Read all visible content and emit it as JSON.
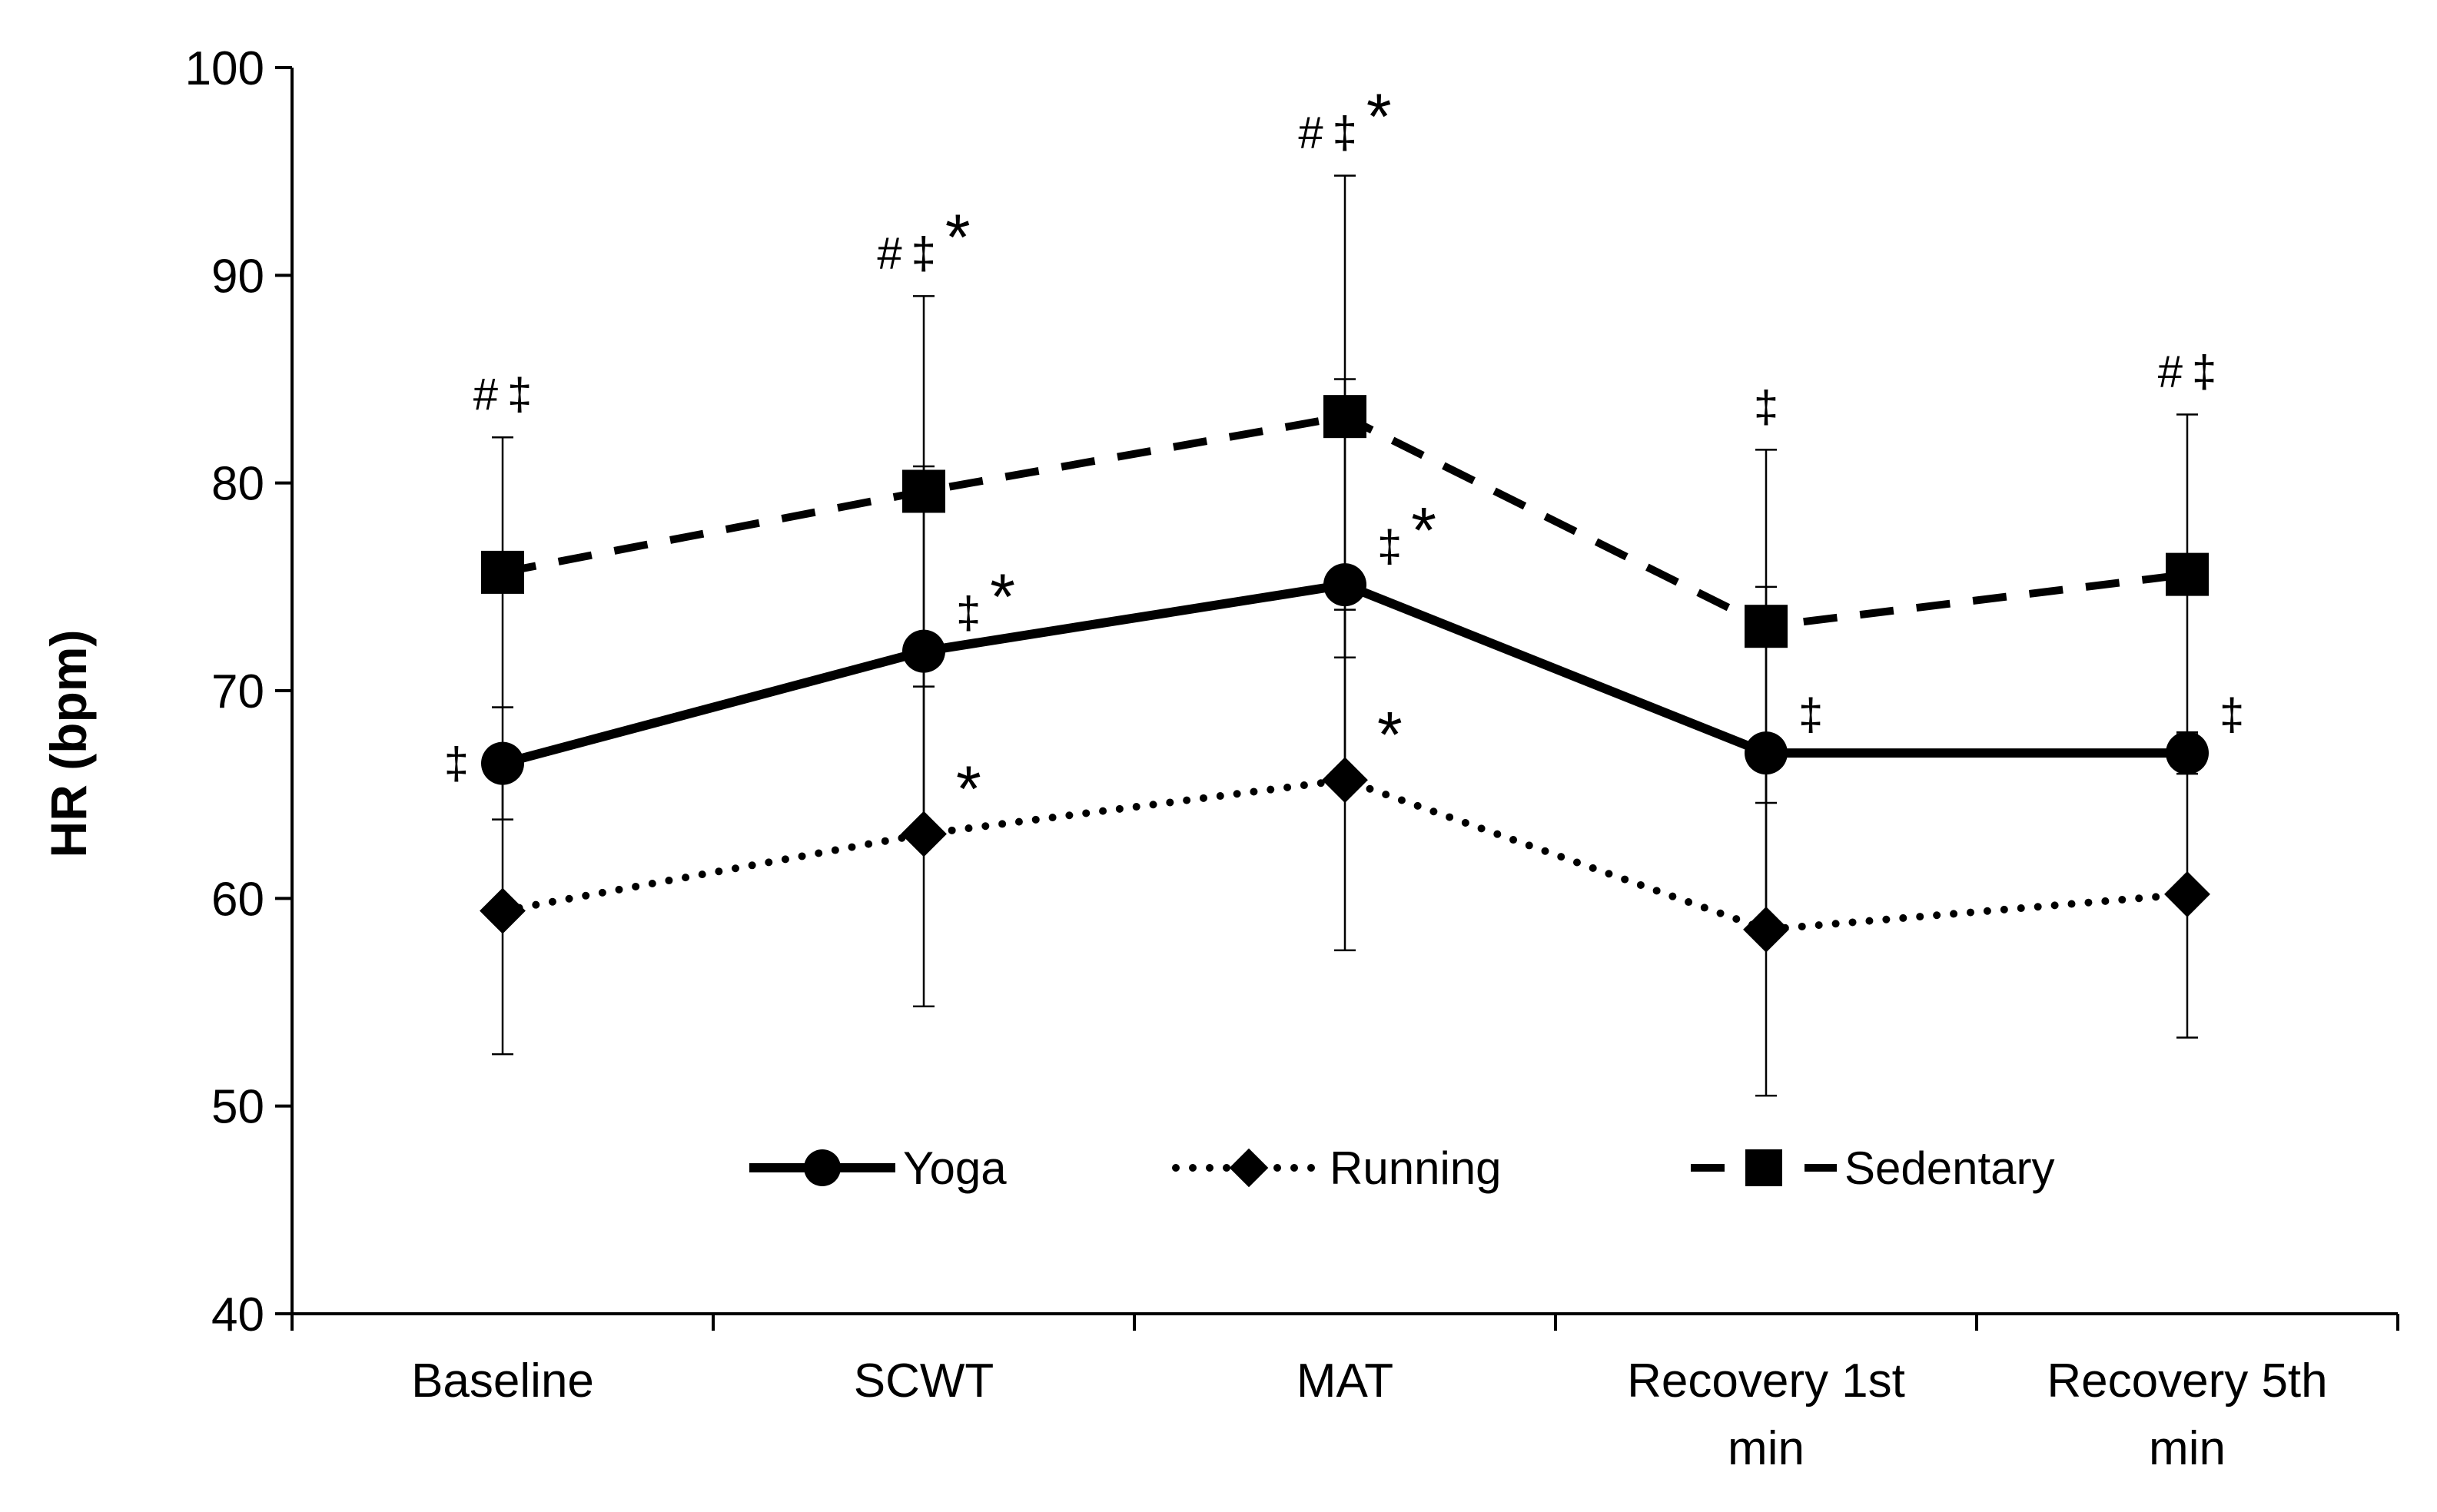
{
  "chart_data": {
    "type": "line",
    "title": "",
    "xlabel": "",
    "ylabel": "HR (bpm)",
    "ylim": [
      40,
      100
    ],
    "yticks": [
      40,
      50,
      60,
      70,
      80,
      90,
      100
    ],
    "grid": false,
    "legend_position": "bottom-center",
    "categories": [
      [
        "Baseline"
      ],
      [
        "SCWT"
      ],
      [
        "MAT"
      ],
      [
        "Recovery 1st",
        "min"
      ],
      [
        "Recovery 5th",
        "min"
      ]
    ],
    "series": [
      {
        "name": "Yoga",
        "line_style": "solid",
        "marker": "circle",
        "values": [
          66.5,
          71.9,
          75.1,
          67.0,
          67.0
        ],
        "error_upper": [
          69.2,
          80.8,
          85.0,
          75.0,
          68.0
        ],
        "error_lower": [
          63.8,
          63.0,
          65.2,
          59.0,
          66.0
        ],
        "annotations": [
          "‡",
          "‡ *",
          "‡ *",
          "‡",
          "‡"
        ]
      },
      {
        "name": "Running",
        "line_style": "dotted",
        "marker": "diamond",
        "values": [
          59.4,
          63.1,
          65.7,
          58.5,
          60.2
        ],
        "error_upper": [
          66.3,
          71.4,
          73.9,
          66.5,
          67.1
        ],
        "error_lower": [
          52.5,
          54.8,
          57.5,
          50.5,
          53.3
        ],
        "annotations": [
          "",
          "*",
          "*",
          "",
          ""
        ]
      },
      {
        "name": "Sedentary",
        "line_style": "dashed",
        "marker": "square",
        "values": [
          75.7,
          79.6,
          83.2,
          73.1,
          75.6
        ],
        "error_upper": [
          82.2,
          89.0,
          94.8,
          81.6,
          83.3
        ],
        "error_lower": [
          69.2,
          70.2,
          71.6,
          64.6,
          67.9
        ],
        "annotations": [
          "# ‡",
          "# ‡ *",
          "# ‡ *",
          "‡",
          "# ‡"
        ]
      }
    ]
  }
}
